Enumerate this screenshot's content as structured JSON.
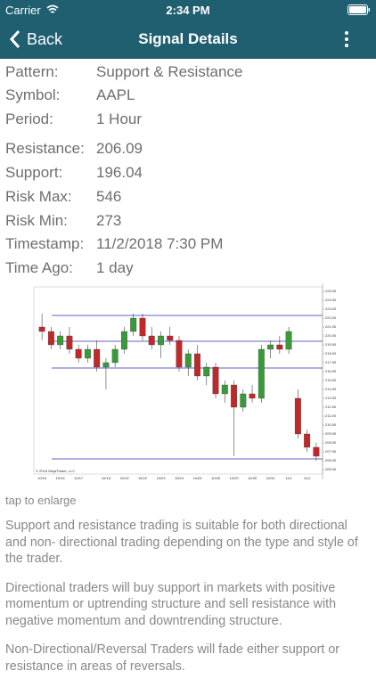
{
  "status_bar": {
    "carrier": "Carrier",
    "time": "2:34 PM"
  },
  "nav": {
    "back": "Back",
    "title": "Signal Details"
  },
  "fields": [
    {
      "label": "Pattern:",
      "value": "Support & Resistance"
    },
    {
      "label": "Symbol:",
      "value": "AAPL"
    },
    {
      "label": "Period:",
      "value": "1 Hour"
    },
    {
      "label": "Resistance:",
      "value": "206.09"
    },
    {
      "label": "Support:",
      "value": "196.04"
    },
    {
      "label": "Risk Max:",
      "value": "546"
    },
    {
      "label": "Risk Min:",
      "value": "273"
    },
    {
      "label": "Timestamp:",
      "value": "11/2/2018 7:30 PM"
    },
    {
      "label": "Time Ago:",
      "value": "1 day"
    }
  ],
  "chart_data": {
    "type": "candlestick",
    "copyright": "© 2018 NinjaTrader, LLC",
    "categories": [
      "10/16",
      null,
      "10/16",
      null,
      "10/17",
      null,
      null,
      "10/18",
      null,
      "10/19",
      null,
      "10/22",
      null,
      "10/23",
      null,
      "10/24",
      null,
      "10/25",
      null,
      "10/26",
      null,
      "10/29",
      null,
      "10/30",
      null,
      "10/31",
      null,
      "11/1",
      null,
      "11/2",
      null
    ],
    "open": [
      221.0,
      220.5,
      219.0,
      220.0,
      218.5,
      217.5,
      218.5,
      216.5,
      217.0,
      218.5,
      220.5,
      222.0,
      220.0,
      219.0,
      220.0,
      219.5,
      216.5,
      218.0,
      215.5,
      216.5,
      213.5,
      214.5,
      212.0,
      213.5,
      213.0,
      218.5,
      219.0,
      218.5,
      213.0,
      209.0,
      207.5
    ],
    "high": [
      222.5,
      221.0,
      220.5,
      221.0,
      219.0,
      219.0,
      219.5,
      217.5,
      219.0,
      221.0,
      222.5,
      222.5,
      221.0,
      220.5,
      221.0,
      220.0,
      218.5,
      219.0,
      217.0,
      217.0,
      215.0,
      215.0,
      214.0,
      214.5,
      219.0,
      219.5,
      220.0,
      221.0,
      214.0,
      209.5,
      208.0
    ],
    "low": [
      219.5,
      218.5,
      218.5,
      218.0,
      217.0,
      217.0,
      216.0,
      214.0,
      216.5,
      218.0,
      220.0,
      219.5,
      218.5,
      217.5,
      219.0,
      216.0,
      215.5,
      215.0,
      214.5,
      213.0,
      212.5,
      206.5,
      211.5,
      212.5,
      212.5,
      217.5,
      218.0,
      218.0,
      208.5,
      207.0,
      206.0
    ],
    "close": [
      220.5,
      219.0,
      220.0,
      218.5,
      217.5,
      218.5,
      216.5,
      217.0,
      218.5,
      220.5,
      222.0,
      220.0,
      219.0,
      220.0,
      219.5,
      216.5,
      218.0,
      215.5,
      216.5,
      213.5,
      214.5,
      212.0,
      213.5,
      213.0,
      218.5,
      219.0,
      218.5,
      220.5,
      209.0,
      207.5,
      206.5
    ],
    "up_color": "#3a9a3a",
    "down_color": "#c0282a",
    "levels": [
      222.3,
      219.4,
      216.4,
      206.2
    ],
    "level_color": "#2b2bb0",
    "ylim": [
      204.5,
      225.5
    ],
    "yticks": [
      {
        "value": 225,
        "label": "225.00"
      },
      {
        "value": 224,
        "label": "224.00"
      },
      {
        "value": 223,
        "label": "223.00"
      },
      {
        "value": 222,
        "label": "222.00"
      },
      {
        "value": 221,
        "label": "221.00"
      },
      {
        "value": 220,
        "label": "220.00"
      },
      {
        "value": 219,
        "label": "219.00"
      },
      {
        "value": 218,
        "label": "218.00"
      },
      {
        "value": 217,
        "label": "217.00"
      },
      {
        "value": 216,
        "label": "216.00"
      },
      {
        "value": 215,
        "label": "215.00"
      },
      {
        "value": 214,
        "label": "214.00"
      },
      {
        "value": 213,
        "label": "213.00"
      },
      {
        "value": 212,
        "label": "212.00"
      },
      {
        "value": 211,
        "label": "211.00"
      },
      {
        "value": 210,
        "label": "210.00"
      },
      {
        "value": 209,
        "label": "209.00"
      },
      {
        "value": 208,
        "label": "208.00"
      },
      {
        "value": 207,
        "label": "207.00"
      },
      {
        "value": 206,
        "label": "206.00"
      },
      {
        "value": 205,
        "label": "205.00"
      }
    ]
  },
  "enlarge_hint": "tap to enlarge",
  "paragraphs": [
    "Support and resistance trading is suitable for both directional and non- directional trading depending on the type and style of the trader.",
    "Directional traders will buy support in markets with positive momentum or uptrending structure and sell resistance with negative momentum and downtrending structure.",
    "Non-Directional/Reversal Traders will fade either support or resistance in areas of reversals."
  ]
}
